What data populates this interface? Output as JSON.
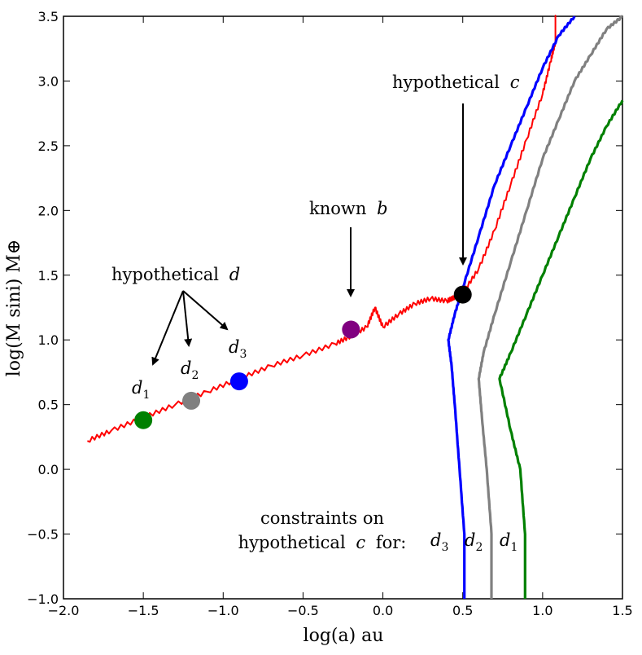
{
  "chart_data": {
    "type": "line",
    "xlabel": "log(a) au",
    "ylabel": "log(M sini) M⊕",
    "xlim": [
      -2.0,
      1.5
    ],
    "ylim": [
      -1.0,
      3.5
    ],
    "xticks": [
      "−2.0",
      "−1.5",
      "−1.0",
      "−0.5",
      "0.0",
      "0.5",
      "1.0",
      "1.5"
    ],
    "yticks": [
      "−1.0",
      "−0.5",
      "0.0",
      "0.5",
      "1.0",
      "1.5",
      "2.0",
      "2.5",
      "3.0",
      "3.5"
    ],
    "series": [
      {
        "name": "red curve",
        "color": "#ff0000",
        "x": [
          -1.85,
          -1.7,
          -1.5,
          -1.3,
          -1.1,
          -0.9,
          -0.7,
          -0.5,
          -0.3,
          -0.2,
          -0.1,
          -0.05,
          0.0,
          0.1,
          0.2,
          0.3,
          0.4,
          0.45,
          0.5,
          0.6,
          0.7,
          0.8,
          0.9,
          1.0,
          1.05,
          1.08,
          1.08,
          1.08
        ],
        "y": [
          0.22,
          0.3,
          0.4,
          0.5,
          0.6,
          0.7,
          0.8,
          0.88,
          0.97,
          1.03,
          1.1,
          1.25,
          1.1,
          1.2,
          1.28,
          1.32,
          1.3,
          1.33,
          1.36,
          1.55,
          1.85,
          2.2,
          2.55,
          2.9,
          3.15,
          3.3,
          3.45,
          3.5
        ]
      },
      {
        "name": "d3",
        "color": "#0000ff",
        "x": [
          0.51,
          0.51,
          0.48,
          0.45,
          0.43,
          0.41,
          0.45,
          0.5,
          0.6,
          0.7,
          0.8,
          0.9,
          1.0,
          1.1,
          1.2
        ],
        "y": [
          -1.0,
          -0.5,
          0.0,
          0.5,
          0.8,
          1.0,
          1.2,
          1.4,
          1.8,
          2.2,
          2.5,
          2.8,
          3.1,
          3.35,
          3.5
        ]
      },
      {
        "name": "d2",
        "color": "#808080",
        "x": [
          0.68,
          0.68,
          0.65,
          0.62,
          0.6,
          0.63,
          0.7,
          0.8,
          0.9,
          1.0,
          1.1,
          1.2,
          1.3,
          1.4,
          1.5
        ],
        "y": [
          -1.0,
          -0.5,
          0.0,
          0.4,
          0.7,
          0.9,
          1.2,
          1.6,
          2.0,
          2.4,
          2.7,
          3.0,
          3.2,
          3.4,
          3.5
        ]
      },
      {
        "name": "d1",
        "color": "#008000",
        "x": [
          0.89,
          0.89,
          0.86,
          0.8,
          0.73,
          0.8,
          0.9,
          1.0,
          1.1,
          1.2,
          1.3,
          1.4,
          1.5
        ],
        "y": [
          -1.0,
          -0.5,
          0.0,
          0.3,
          0.7,
          0.9,
          1.2,
          1.5,
          1.8,
          2.1,
          2.4,
          2.65,
          2.85
        ]
      }
    ],
    "points": [
      {
        "name": "d1",
        "x": -1.5,
        "y": 0.38,
        "color": "#008000"
      },
      {
        "name": "d2",
        "x": -1.2,
        "y": 0.53,
        "color": "#808080"
      },
      {
        "name": "d3",
        "x": -0.9,
        "y": 0.68,
        "color": "#0000ff"
      },
      {
        "name": "known b",
        "x": -0.2,
        "y": 1.08,
        "color": "#800080"
      },
      {
        "name": "hypothetical c",
        "x": 0.5,
        "y": 1.35,
        "color": "#000000"
      }
    ],
    "annotations": {
      "hyp_c": "hypothetical",
      "hyp_c_var": "c",
      "known_b": "known",
      "known_b_var": "b",
      "hyp_d": "hypothetical",
      "hyp_d_var": "d",
      "constraints_line1": "constraints on",
      "constraints_line2_a": "hypothetical",
      "constraints_line2_var": "c",
      "constraints_line2_b": "for:",
      "d_letter": "d",
      "sub1": "1",
      "sub2": "2",
      "sub3": "3"
    }
  }
}
